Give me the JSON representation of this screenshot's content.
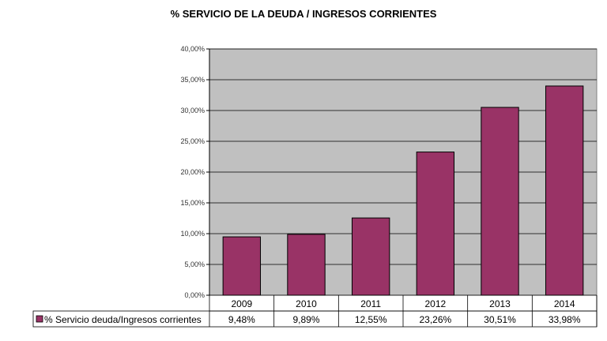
{
  "chart_data": {
    "type": "bar",
    "title": "% SERVICIO DE LA DEUDA / INGRESOS CORRIENTES",
    "categories": [
      "2009",
      "2010",
      "2011",
      "2012",
      "2013",
      "2014"
    ],
    "series": [
      {
        "name": "% Servicio deuda/Ingresos corrientes",
        "values": [
          9.48,
          9.89,
          12.55,
          23.26,
          30.51,
          33.98
        ],
        "labels": [
          "9,48%",
          "9,89%",
          "12,55%",
          "23,26%",
          "30,51%",
          "33,98%"
        ],
        "color": "#993366"
      }
    ],
    "ylim": [
      0,
      40
    ],
    "yticks": [
      0,
      5,
      10,
      15,
      20,
      25,
      30,
      35,
      40
    ],
    "ytick_labels": [
      "0,00%",
      "5,00%",
      "10,00%",
      "15,00%",
      "20,00%",
      "25,00%",
      "30,00%",
      "35,00%",
      "40,00%"
    ],
    "grid": true,
    "legend": "data-table",
    "plot_bg": "#c0c0c0"
  }
}
